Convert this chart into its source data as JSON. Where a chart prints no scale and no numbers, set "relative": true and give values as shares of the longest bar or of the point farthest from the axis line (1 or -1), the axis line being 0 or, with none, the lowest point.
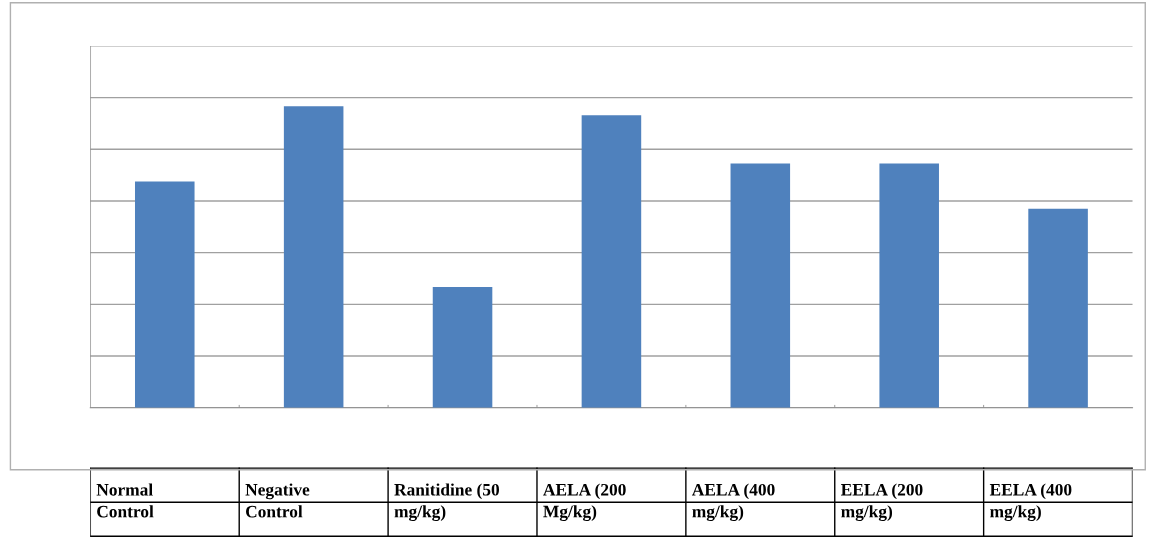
{
  "chart_data": {
    "type": "bar",
    "relative": true,
    "categories": [
      "Normal Control",
      "Negative Control",
      "Ranitidine (50 mg/kg)",
      "AELA (200 Mg/kg)",
      "AELA (400 mg/kg)",
      "EELA (200 mg/kg)",
      "EELA (400 mg/kg)"
    ],
    "values": [
      0.75,
      1,
      0.4,
      0.97,
      0.81,
      0.81,
      0.66
    ],
    "color": "#4f81bd",
    "grid": "y",
    "data_labels": false
  }
}
